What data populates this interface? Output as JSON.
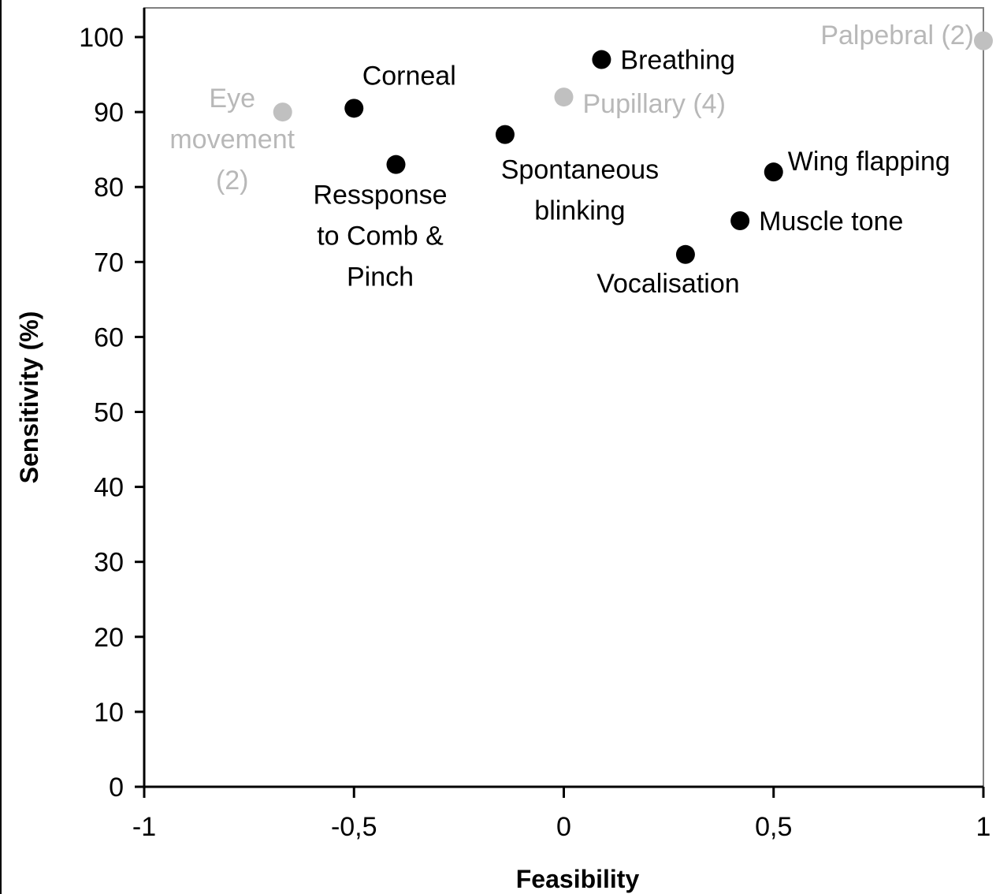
{
  "chart_data": {
    "type": "scatter",
    "title": "",
    "xlabel": "Feasibility",
    "ylabel": "Sensitivity (%)",
    "xlim": [
      -1,
      1
    ],
    "ylim": [
      0,
      100
    ],
    "x_ticks": [
      -1,
      -0.5,
      0,
      0.5,
      1
    ],
    "x_tick_labels": [
      "-1",
      "-0,5",
      "0",
      "0,5",
      "1"
    ],
    "y_ticks": [
      0,
      10,
      20,
      30,
      40,
      50,
      60,
      70,
      80,
      90,
      100
    ],
    "y_tick_labels": [
      "0",
      "10",
      "20",
      "30",
      "40",
      "50",
      "60",
      "70",
      "80",
      "90",
      "100"
    ],
    "grid": false,
    "colors": {
      "black_points": "#000000",
      "grey_points": "#c0c0c0"
    },
    "points": [
      {
        "label_lines": [
          "Eye",
          "movement",
          "(2)"
        ],
        "x": -0.67,
        "y": 90,
        "color": "#c0c0c0",
        "label_pos": "left"
      },
      {
        "label_lines": [
          "Corneal"
        ],
        "x": -0.5,
        "y": 90.5,
        "color": "#000000",
        "label_pos": "above-right"
      },
      {
        "label_lines": [
          "Ressponse",
          "to Comb &",
          "Pinch"
        ],
        "x": -0.4,
        "y": 83,
        "color": "#000000",
        "label_pos": "below"
      },
      {
        "label_lines": [
          "Spontaneous",
          "blinking"
        ],
        "x": -0.14,
        "y": 87,
        "color": "#000000",
        "label_pos": "below"
      },
      {
        "label_lines": [
          "Pupillary (4)"
        ],
        "x": 0.0,
        "y": 92,
        "color": "#c0c0c0",
        "label_pos": "right"
      },
      {
        "label_lines": [
          "Breathing"
        ],
        "x": 0.09,
        "y": 97,
        "color": "#000000",
        "label_pos": "right"
      },
      {
        "label_lines": [
          "Vocalisation"
        ],
        "x": 0.29,
        "y": 71,
        "color": "#000000",
        "label_pos": "below"
      },
      {
        "label_lines": [
          "Muscle tone"
        ],
        "x": 0.42,
        "y": 75.5,
        "color": "#000000",
        "label_pos": "right"
      },
      {
        "label_lines": [
          "Wing flapping"
        ],
        "x": 0.5,
        "y": 82,
        "color": "#000000",
        "label_pos": "above-right"
      },
      {
        "label_lines": [
          "Palpebral (2)"
        ],
        "x": 1.0,
        "y": 99.5,
        "color": "#c0c0c0",
        "label_pos": "left"
      }
    ]
  }
}
